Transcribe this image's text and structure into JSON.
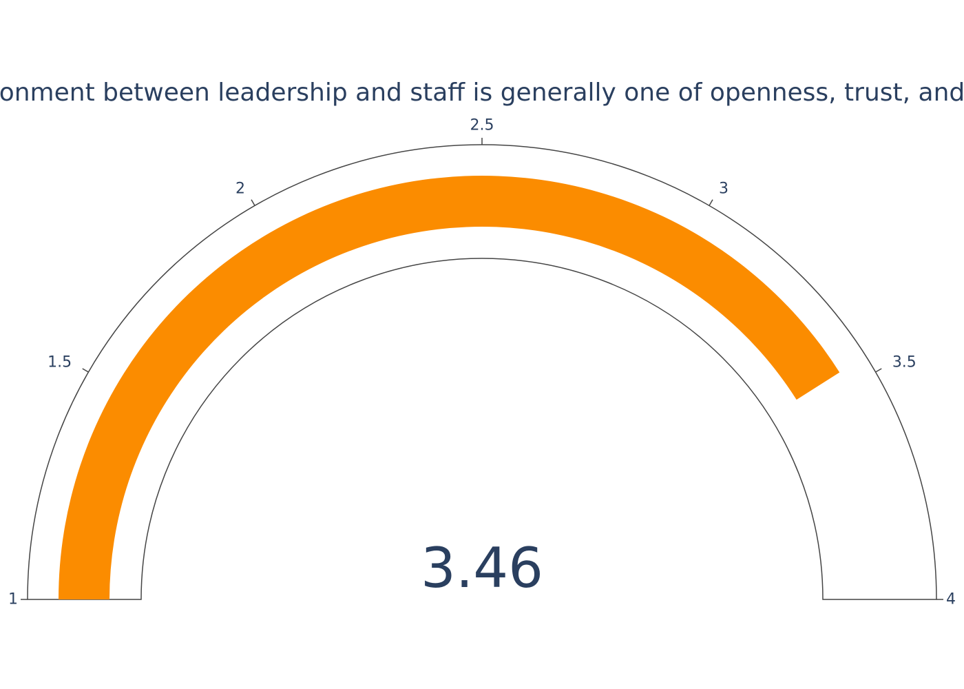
{
  "chart_data": {
    "type": "gauge",
    "title": "onment between leadership and staff is generally one of openness, trust, and",
    "value": 3.46,
    "value_label": "3.46",
    "range": [
      1,
      4
    ],
    "ticks": [
      {
        "value": 1,
        "label": "1"
      },
      {
        "value": 1.5,
        "label": "1.5"
      },
      {
        "value": 2,
        "label": "2"
      },
      {
        "value": 2.5,
        "label": "2.5"
      },
      {
        "value": 3,
        "label": "3"
      },
      {
        "value": 3.5,
        "label": "3.5"
      },
      {
        "value": 4,
        "label": "4"
      }
    ],
    "bar_color": "#fb8c00",
    "outline_color": "#444444",
    "text_color": "#2a3f5f"
  }
}
